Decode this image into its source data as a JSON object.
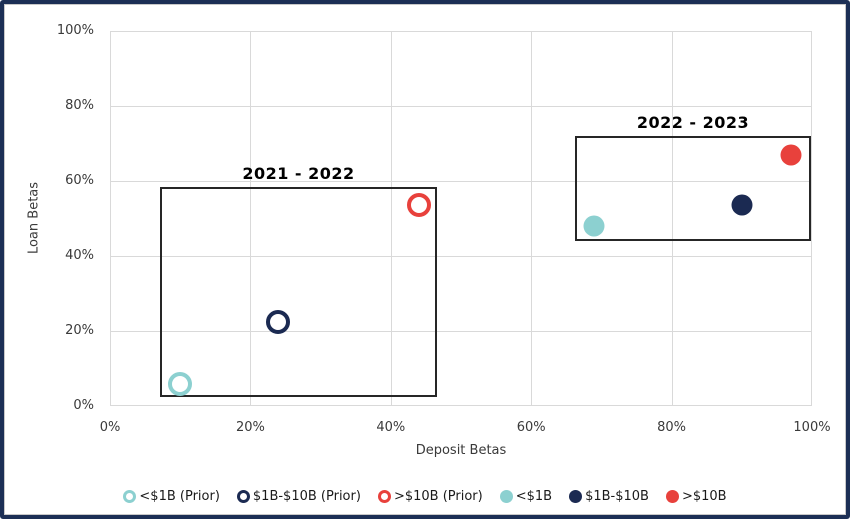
{
  "frame": {
    "border_color": "#1C2F55",
    "background": "#FFFFFF"
  },
  "chart_data": {
    "type": "scatter",
    "title": "",
    "xlabel": "Deposit Betas",
    "ylabel": "Loan Betas",
    "xlim": [
      0,
      100
    ],
    "ylim": [
      0,
      100
    ],
    "grid": true,
    "gridline_color": "#D9D9D9",
    "legend_position": "bottom",
    "x_ticks": [
      {
        "v": 0,
        "label": "0%"
      },
      {
        "v": 20,
        "label": "20%"
      },
      {
        "v": 40,
        "label": "40%"
      },
      {
        "v": 60,
        "label": "60%"
      },
      {
        "v": 80,
        "label": "80%"
      },
      {
        "v": 100,
        "label": "100%"
      }
    ],
    "y_ticks": [
      {
        "v": 0,
        "label": "0%"
      },
      {
        "v": 20,
        "label": "20%"
      },
      {
        "v": 40,
        "label": "40%"
      },
      {
        "v": 60,
        "label": "60%"
      },
      {
        "v": 80,
        "label": "80%"
      },
      {
        "v": 100,
        "label": "100%"
      }
    ],
    "series": [
      {
        "name": "<$1B (Prior)",
        "marker": "open",
        "color": "#8CD0D0",
        "points": [
          {
            "x": 10,
            "y": 6
          }
        ]
      },
      {
        "name": "$1B-$10B (Prior)",
        "marker": "open",
        "color": "#1B2A52",
        "points": [
          {
            "x": 24,
            "y": 22.5
          }
        ]
      },
      {
        "name": ">$10B (Prior)",
        "marker": "open",
        "color": "#E8413C",
        "points": [
          {
            "x": 44,
            "y": 53.5
          }
        ]
      },
      {
        "name": "<$1B",
        "marker": "solid",
        "color": "#8CD0D0",
        "points": [
          {
            "x": 69,
            "y": 48
          }
        ]
      },
      {
        "name": "$1B-$10B",
        "marker": "solid",
        "color": "#1B2A52",
        "points": [
          {
            "x": 90,
            "y": 53.5
          }
        ]
      },
      {
        "name": ">$10B",
        "marker": "solid",
        "color": "#E8413C",
        "points": [
          {
            "x": 97,
            "y": 67
          }
        ]
      }
    ],
    "annotations": [
      {
        "label": "2021 - 2022",
        "x0": 7.1,
        "x1": 46.6,
        "y0": 2.5,
        "y1": 58.5
      },
      {
        "label": "2022 - 2023",
        "x0": 66.3,
        "x1": 99.8,
        "y0": 44,
        "y1": 72
      }
    ]
  }
}
